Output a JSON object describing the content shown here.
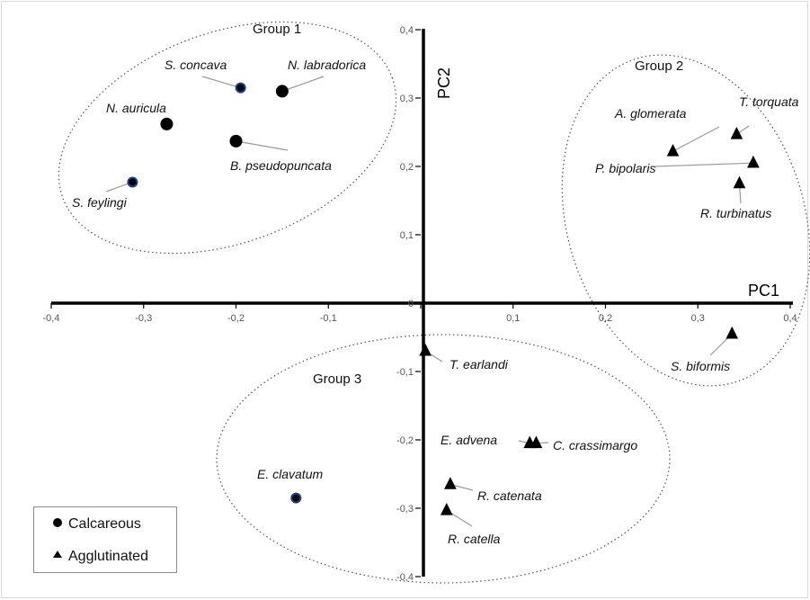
{
  "chart_data": {
    "type": "scatter",
    "title": "",
    "xlabel": "PC1",
    "ylabel": "PC2",
    "xlim": [
      -0.4,
      0.4
    ],
    "ylim": [
      -0.4,
      0.4
    ],
    "x_ticks": [
      "-0,4",
      "-0,3",
      "-0,2",
      "-0,1",
      "0",
      "0,1",
      "0,2",
      "0,3",
      "0,4"
    ],
    "y_ticks": [
      "-0,4",
      "-0,3",
      "-0,2",
      "-0,1",
      "0",
      "0,1",
      "0,2",
      "0,3",
      "0,4"
    ],
    "grid": false,
    "legend_position": "bottom-left",
    "legend": [
      {
        "label": "Calcareous",
        "marker": "circle"
      },
      {
        "label": "Agglutinated",
        "marker": "triangle"
      }
    ],
    "groups": [
      {
        "label": "Group 1",
        "members": [
          "N. labradorica",
          "S. concava",
          "N. auricula",
          "B. pseudopuncata",
          "S. feylingi"
        ]
      },
      {
        "label": "Group 2",
        "members": [
          "A. glomerata",
          "T. torquata",
          "P. bipolaris",
          "R. turbinatus",
          "S. biformis"
        ]
      },
      {
        "label": "Group 3",
        "members": [
          "T. earlandi",
          "E. advena",
          "C. crassimargo",
          "R. catenata",
          "R. catella",
          "E. clavatum"
        ]
      }
    ],
    "series": [
      {
        "name": "Calcareous",
        "marker": "circle",
        "points": [
          {
            "label": "N. labradorica",
            "x": -0.15,
            "y": 0.31
          },
          {
            "label": "S. concava",
            "x": -0.195,
            "y": 0.315
          },
          {
            "label": "N. auricula",
            "x": -0.275,
            "y": 0.262
          },
          {
            "label": "B. pseudopuncata",
            "x": -0.2,
            "y": 0.237
          },
          {
            "label": "S. feylingi",
            "x": -0.312,
            "y": 0.177
          },
          {
            "label": "E. clavatum",
            "x": -0.135,
            "y": -0.285
          }
        ]
      },
      {
        "name": "Agglutinated",
        "marker": "triangle",
        "points": [
          {
            "label": "A. glomerata",
            "x": 0.273,
            "y": 0.222
          },
          {
            "label": "T. torquata",
            "x": 0.342,
            "y": 0.247
          },
          {
            "label": "P. bipolaris",
            "x": 0.36,
            "y": 0.205
          },
          {
            "label": "R. turbinatus",
            "x": 0.345,
            "y": 0.175
          },
          {
            "label": "S. biformis",
            "x": 0.337,
            "y": -0.045
          },
          {
            "label": "T. earlandi",
            "x": 0.005,
            "y": -0.07
          },
          {
            "label": "E. advena",
            "x": 0.118,
            "y": -0.205
          },
          {
            "label": "C. crassimargo",
            "x": 0.125,
            "y": -0.205
          },
          {
            "label": "R. catenata",
            "x": 0.032,
            "y": -0.265
          },
          {
            "label": "R. catella",
            "x": 0.028,
            "y": -0.303
          }
        ]
      }
    ],
    "colors": {
      "marker_fill": "#000000",
      "calcareous_outline_blue": "#1f3f8f",
      "leader_line": "#9a9a9a",
      "ellipse": "#555555",
      "axis": "#000000",
      "frame": "#d9d9d9"
    }
  }
}
